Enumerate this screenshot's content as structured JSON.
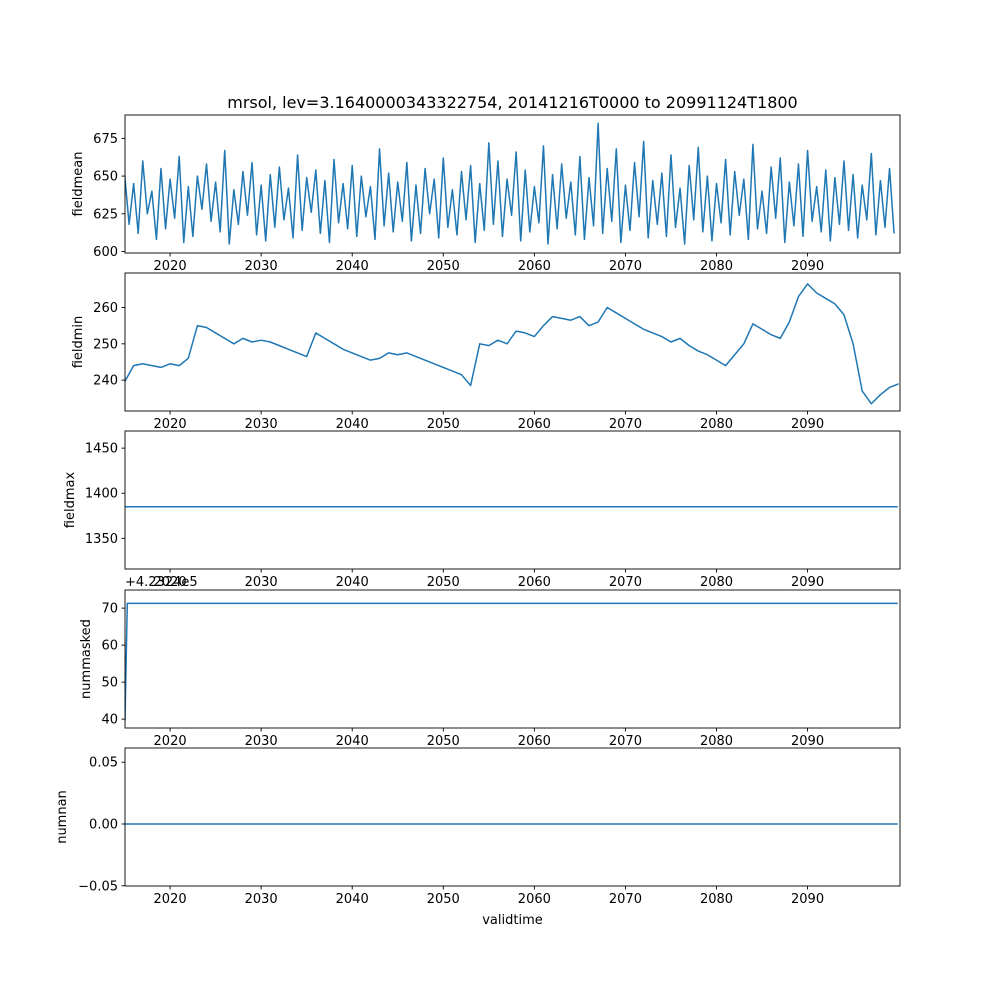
{
  "figure": {
    "title": "mrsol, lev=3.1640000343322754, 20141216T0000 to 20991124T1800",
    "xlabel": "validtime",
    "background": "#ffffff",
    "line_color": "#1f77b4"
  },
  "chart_data": [
    {
      "type": "line",
      "ylabel": "fieldmean",
      "xlabel": "",
      "xlim": [
        2015.05,
        2100.15
      ],
      "ylim": [
        599,
        690.5
      ],
      "xticks": [
        2020,
        2030,
        2040,
        2050,
        2060,
        2070,
        2080,
        2090
      ],
      "yticks": [
        600,
        625,
        650,
        675
      ],
      "line_color": "#1f77b4",
      "series": {
        "x_start": 2015,
        "x_step": 0.5,
        "values": [
          652,
          618,
          645,
          612,
          660,
          625,
          640,
          608,
          655,
          615,
          648,
          622,
          663,
          606,
          643,
          610,
          650,
          628,
          658,
          620,
          646,
          613,
          667,
          605,
          641,
          618,
          653,
          624,
          659,
          611,
          644,
          607,
          651,
          616,
          656,
          621,
          642,
          609,
          664,
          614,
          649,
          626,
          654,
          612,
          647,
          606,
          661,
          619,
          645,
          615,
          657,
          610,
          650,
          623,
          643,
          608,
          668,
          617,
          652,
          613,
          646,
          620,
          659,
          607,
          644,
          612,
          655,
          625,
          648,
          609,
          662,
          616,
          641,
          611,
          653,
          621,
          657,
          606,
          645,
          614,
          672,
          618,
          660,
          610,
          648,
          624,
          666,
          607,
          654,
          613,
          643,
          619,
          670,
          605,
          651,
          615,
          658,
          622,
          646,
          611,
          663,
          608,
          649,
          617,
          685,
          612,
          655,
          620,
          668,
          606,
          644,
          614,
          659,
          623,
          673,
          609,
          647,
          618,
          652,
          610,
          664,
          616,
          642,
          605,
          657,
          621,
          669,
          613,
          650,
          607,
          645,
          619,
          661,
          611,
          653,
          624,
          648,
          608,
          671,
          615,
          640,
          612,
          656,
          622,
          662,
          606,
          646,
          617,
          658,
          610,
          667,
          620,
          643,
          613,
          654,
          607,
          649,
          618,
          660,
          614,
          651,
          609,
          644,
          621,
          665,
          611,
          647,
          616,
          655,
          612
        ]
      }
    },
    {
      "type": "line",
      "ylabel": "fieldmin",
      "xlabel": "",
      "xlim": [
        2015.05,
        2100.15
      ],
      "ylim": [
        231.5,
        269.5
      ],
      "xticks": [
        2020,
        2030,
        2040,
        2050,
        2060,
        2070,
        2080,
        2090
      ],
      "yticks": [
        240,
        250,
        260
      ],
      "line_color": "#1f77b4",
      "series": {
        "x_start": 2015,
        "x_step": 1,
        "values": [
          239.5,
          244,
          244.5,
          244,
          243.5,
          244.5,
          244,
          246,
          255,
          254.5,
          253,
          251.5,
          250,
          251.5,
          250.5,
          251,
          250.5,
          249.5,
          248.5,
          247.5,
          246.5,
          253,
          251.5,
          250,
          248.5,
          247.5,
          246.5,
          245.5,
          246,
          247.5,
          247,
          247.5,
          246.5,
          245.5,
          244.5,
          243.5,
          242.5,
          241.5,
          238.5,
          250,
          249.5,
          251,
          250,
          253.5,
          253,
          252,
          255,
          257.5,
          257,
          256.5,
          257.5,
          255,
          256,
          260,
          258.5,
          257,
          255.5,
          254,
          253,
          252,
          250.5,
          251.5,
          249.5,
          248,
          247,
          245.5,
          244,
          247,
          250,
          255.5,
          254,
          252.5,
          251.5,
          256,
          263,
          266.5,
          264,
          262.5,
          261,
          258,
          250,
          237,
          233.5,
          236,
          238,
          239
        ]
      }
    },
    {
      "type": "line",
      "ylabel": "fieldmax",
      "xlabel": "",
      "xlim": [
        2015.05,
        2100.15
      ],
      "ylim": [
        1316,
        1469
      ],
      "xticks": [
        2020,
        2030,
        2040,
        2050,
        2060,
        2070,
        2080,
        2090
      ],
      "yticks": [
        1350,
        1400,
        1450
      ],
      "line_color": "#1f77b4",
      "series": {
        "points": [
          [
            2014.96,
            1385
          ],
          [
            2099.9,
            1385
          ]
        ]
      }
    },
    {
      "type": "line",
      "ylabel": "nummasked",
      "xlabel": "",
      "offset_text": "+4.2324e5",
      "offset_value": 423240,
      "xlim": [
        2015.05,
        2100.15
      ],
      "ylim": [
        37.6,
        74.9
      ],
      "xticks": [
        2020,
        2030,
        2040,
        2050,
        2060,
        2070,
        2080,
        2090
      ],
      "yticks": [
        40,
        50,
        60,
        70
      ],
      "line_color": "#1f77b4",
      "series": {
        "points": [
          [
            2014.96,
            39.7
          ],
          [
            2015.05,
            39.7
          ],
          [
            2015.3,
            71.3
          ],
          [
            2099.9,
            71.3
          ]
        ]
      }
    },
    {
      "type": "line",
      "ylabel": "numnan",
      "xlabel": "validtime",
      "xlim": [
        2015.05,
        2100.15
      ],
      "ylim": [
        -0.0502,
        0.0615
      ],
      "xticks": [
        2020,
        2030,
        2040,
        2050,
        2060,
        2070,
        2080,
        2090
      ],
      "yticks": [
        {
          "v": -0.05,
          "label": "−0.05"
        },
        {
          "v": 0,
          "label": "0.00"
        },
        {
          "v": 0.05,
          "label": "0.05"
        }
      ],
      "line_color": "#1f77b4",
      "series": {
        "points": [
          [
            2014.96,
            0
          ],
          [
            2099.9,
            0
          ]
        ]
      }
    }
  ]
}
